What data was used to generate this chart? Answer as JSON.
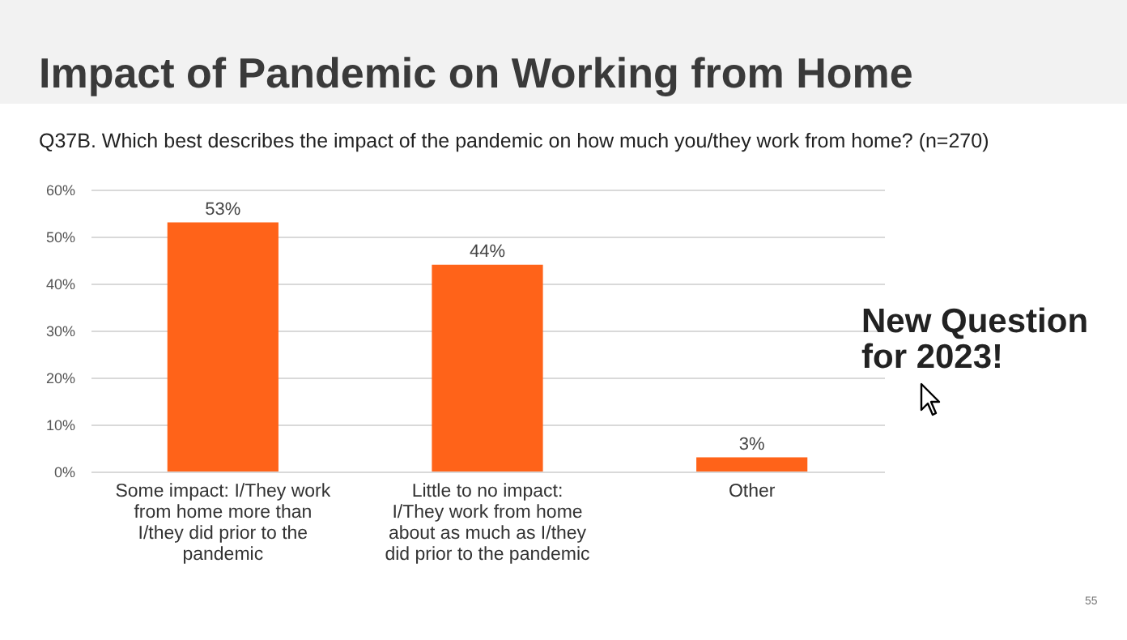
{
  "chart_data": {
    "type": "bar",
    "title": "Impact of Pandemic on Working from Home",
    "subtitle": "Q37B. Which best describes the impact of the pandemic on how much you/they work from home? (n=270)",
    "categories": [
      "Some impact:  I/They work from home more than I/they did prior to the pandemic",
      "Little to no impact:  I/They work from home about as much as I/they did prior to the pandemic",
      "Other"
    ],
    "values": [
      53,
      44,
      3
    ],
    "color": "#ff6319",
    "value_labels": [
      "53%",
      "44%",
      "3%"
    ],
    "ylim": [
      0,
      60
    ],
    "yticks": [
      {
        "value": 0,
        "label": "0%"
      },
      {
        "value": 10,
        "label": "10%"
      },
      {
        "value": 20,
        "label": "20%"
      },
      {
        "value": 30,
        "label": "30%"
      },
      {
        "value": 40,
        "label": "40%"
      },
      {
        "value": 50,
        "label": "50%"
      },
      {
        "value": 60,
        "label": "60%"
      }
    ],
    "grid": "y",
    "annotations": [
      "New Question for 2023!",
      "55"
    ]
  }
}
